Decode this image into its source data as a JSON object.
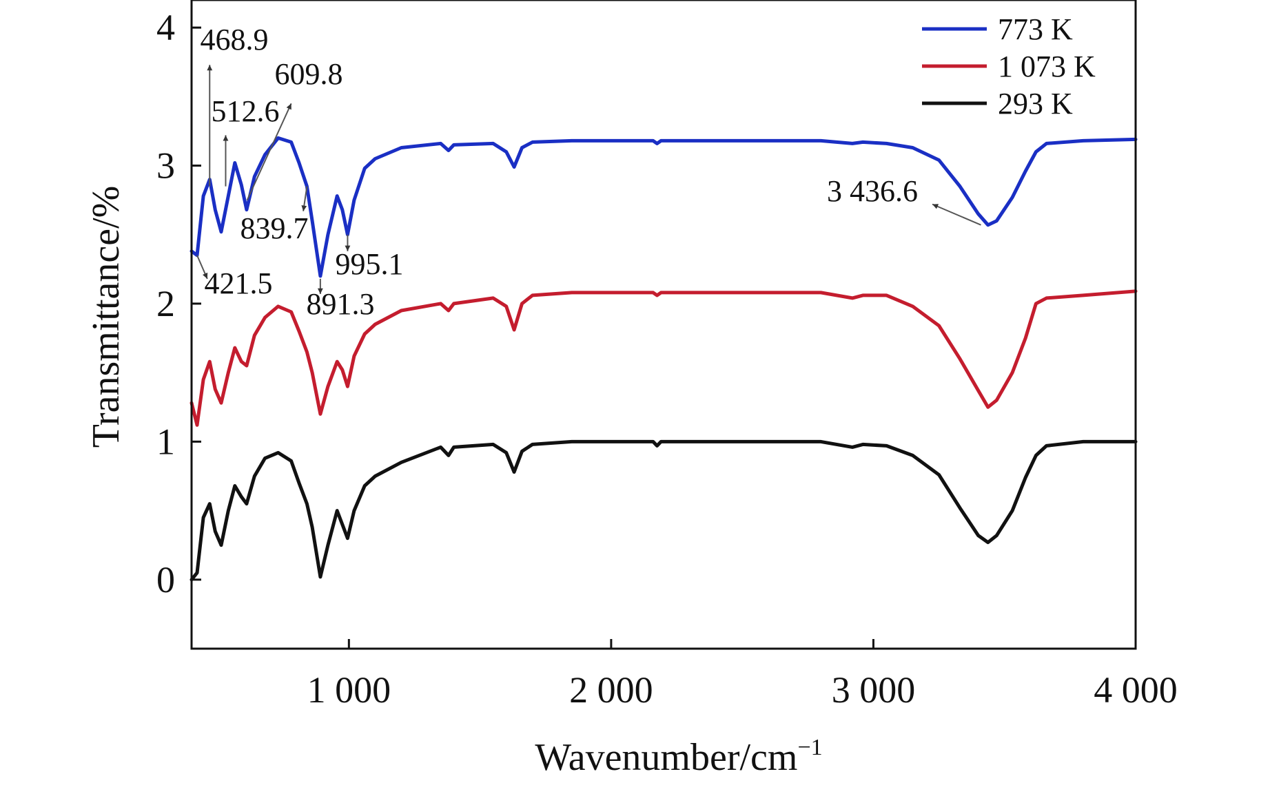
{
  "chart_data": {
    "type": "line",
    "title": "",
    "xlabel": "Wavenumber/cm",
    "xlabel_sup": "−1",
    "ylabel": "Transmittance/%",
    "xlim": [
      400,
      4000
    ],
    "ylim": [
      -0.5,
      4.2
    ],
    "x_ticks": [
      1000,
      2000,
      3000,
      4000
    ],
    "x_tick_labels": [
      "1 000",
      "2 000",
      "3 000",
      "4 000"
    ],
    "y_ticks": [
      0,
      1,
      2,
      3,
      4
    ],
    "y_tick_labels": [
      "0",
      "1",
      "2",
      "3",
      "4"
    ],
    "legend_position": "top-right",
    "colors": {
      "773 K": "#1a2fc4",
      "1 073 K": "#c41d2e",
      "293 K": "#111111",
      "annotation": "#555555"
    },
    "series": [
      {
        "name": "773 K",
        "offset": 2.2,
        "points": [
          [
            400,
            0.18
          ],
          [
            421,
            0.15
          ],
          [
            445,
            0.58
          ],
          [
            469,
            0.7
          ],
          [
            490,
            0.48
          ],
          [
            513,
            0.32
          ],
          [
            540,
            0.58
          ],
          [
            565,
            0.82
          ],
          [
            590,
            0.66
          ],
          [
            610,
            0.48
          ],
          [
            640,
            0.72
          ],
          [
            680,
            0.88
          ],
          [
            730,
            1.0
          ],
          [
            780,
            0.97
          ],
          [
            810,
            0.82
          ],
          [
            840,
            0.65
          ],
          [
            860,
            0.4
          ],
          [
            891,
            0.0
          ],
          [
            920,
            0.3
          ],
          [
            955,
            0.58
          ],
          [
            975,
            0.48
          ],
          [
            995,
            0.3
          ],
          [
            1020,
            0.55
          ],
          [
            1060,
            0.78
          ],
          [
            1100,
            0.85
          ],
          [
            1200,
            0.93
          ],
          [
            1350,
            0.96
          ],
          [
            1380,
            0.91
          ],
          [
            1400,
            0.95
          ],
          [
            1550,
            0.96
          ],
          [
            1600,
            0.9
          ],
          [
            1630,
            0.79
          ],
          [
            1660,
            0.93
          ],
          [
            1700,
            0.97
          ],
          [
            1850,
            0.98
          ],
          [
            2000,
            0.98
          ],
          [
            2160,
            0.98
          ],
          [
            2175,
            0.96
          ],
          [
            2190,
            0.98
          ],
          [
            2500,
            0.98
          ],
          [
            2800,
            0.98
          ],
          [
            2920,
            0.96
          ],
          [
            2960,
            0.97
          ],
          [
            3050,
            0.96
          ],
          [
            3150,
            0.93
          ],
          [
            3250,
            0.84
          ],
          [
            3330,
            0.65
          ],
          [
            3400,
            0.45
          ],
          [
            3437,
            0.37
          ],
          [
            3470,
            0.4
          ],
          [
            3530,
            0.57
          ],
          [
            3580,
            0.76
          ],
          [
            3620,
            0.9
          ],
          [
            3660,
            0.96
          ],
          [
            3800,
            0.98
          ],
          [
            4000,
            0.99
          ]
        ]
      },
      {
        "name": "1 073 K",
        "offset": 1.1,
        "points": [
          [
            400,
            0.18
          ],
          [
            421,
            0.02
          ],
          [
            445,
            0.35
          ],
          [
            469,
            0.48
          ],
          [
            490,
            0.28
          ],
          [
            513,
            0.18
          ],
          [
            540,
            0.4
          ],
          [
            565,
            0.58
          ],
          [
            590,
            0.48
          ],
          [
            610,
            0.45
          ],
          [
            640,
            0.67
          ],
          [
            680,
            0.8
          ],
          [
            730,
            0.88
          ],
          [
            780,
            0.84
          ],
          [
            810,
            0.7
          ],
          [
            840,
            0.55
          ],
          [
            860,
            0.4
          ],
          [
            891,
            0.1
          ],
          [
            920,
            0.3
          ],
          [
            955,
            0.48
          ],
          [
            975,
            0.42
          ],
          [
            995,
            0.3
          ],
          [
            1020,
            0.52
          ],
          [
            1060,
            0.68
          ],
          [
            1100,
            0.75
          ],
          [
            1200,
            0.85
          ],
          [
            1350,
            0.9
          ],
          [
            1380,
            0.85
          ],
          [
            1400,
            0.9
          ],
          [
            1550,
            0.94
          ],
          [
            1600,
            0.88
          ],
          [
            1630,
            0.71
          ],
          [
            1660,
            0.9
          ],
          [
            1700,
            0.96
          ],
          [
            1850,
            0.98
          ],
          [
            2000,
            0.98
          ],
          [
            2160,
            0.98
          ],
          [
            2175,
            0.96
          ],
          [
            2190,
            0.98
          ],
          [
            2500,
            0.98
          ],
          [
            2800,
            0.98
          ],
          [
            2920,
            0.94
          ],
          [
            2960,
            0.96
          ],
          [
            3050,
            0.96
          ],
          [
            3150,
            0.88
          ],
          [
            3250,
            0.74
          ],
          [
            3330,
            0.5
          ],
          [
            3400,
            0.27
          ],
          [
            3437,
            0.15
          ],
          [
            3470,
            0.2
          ],
          [
            3530,
            0.4
          ],
          [
            3580,
            0.65
          ],
          [
            3620,
            0.9
          ],
          [
            3660,
            0.94
          ],
          [
            3800,
            0.96
          ],
          [
            4000,
            0.99
          ]
        ]
      },
      {
        "name": "293 K",
        "offset": 0.0,
        "points": [
          [
            400,
            0.0
          ],
          [
            421,
            0.05
          ],
          [
            445,
            0.45
          ],
          [
            469,
            0.55
          ],
          [
            490,
            0.35
          ],
          [
            513,
            0.25
          ],
          [
            540,
            0.5
          ],
          [
            565,
            0.68
          ],
          [
            590,
            0.6
          ],
          [
            610,
            0.55
          ],
          [
            640,
            0.75
          ],
          [
            680,
            0.88
          ],
          [
            730,
            0.92
          ],
          [
            780,
            0.86
          ],
          [
            810,
            0.7
          ],
          [
            840,
            0.55
          ],
          [
            860,
            0.38
          ],
          [
            891,
            0.02
          ],
          [
            920,
            0.25
          ],
          [
            955,
            0.5
          ],
          [
            975,
            0.4
          ],
          [
            995,
            0.3
          ],
          [
            1020,
            0.5
          ],
          [
            1060,
            0.68
          ],
          [
            1100,
            0.75
          ],
          [
            1200,
            0.85
          ],
          [
            1350,
            0.96
          ],
          [
            1380,
            0.9
          ],
          [
            1400,
            0.96
          ],
          [
            1550,
            0.98
          ],
          [
            1600,
            0.92
          ],
          [
            1630,
            0.78
          ],
          [
            1660,
            0.93
          ],
          [
            1700,
            0.98
          ],
          [
            1850,
            1.0
          ],
          [
            2000,
            1.0
          ],
          [
            2160,
            1.0
          ],
          [
            2175,
            0.97
          ],
          [
            2190,
            1.0
          ],
          [
            2500,
            1.0
          ],
          [
            2800,
            1.0
          ],
          [
            2920,
            0.96
          ],
          [
            2960,
            0.98
          ],
          [
            3050,
            0.97
          ],
          [
            3150,
            0.9
          ],
          [
            3250,
            0.76
          ],
          [
            3330,
            0.52
          ],
          [
            3400,
            0.32
          ],
          [
            3437,
            0.27
          ],
          [
            3470,
            0.32
          ],
          [
            3530,
            0.5
          ],
          [
            3580,
            0.74
          ],
          [
            3620,
            0.9
          ],
          [
            3660,
            0.97
          ],
          [
            3800,
            1.0
          ],
          [
            4000,
            1.0
          ]
        ]
      }
    ],
    "annotations": [
      {
        "label": "468.9",
        "peak": [
          469,
          2.85
        ],
        "arrow_to": [
          469,
          3.73
        ]
      },
      {
        "label": "609.8",
        "peak": [
          612,
          2.75
        ],
        "arrow_to": [
          780,
          3.45
        ]
      },
      {
        "label": "512.6",
        "peak": [
          530,
          2.85
        ],
        "arrow_to": [
          530,
          3.22
        ]
      },
      {
        "label": "839.7",
        "peak": [
          840,
          2.85
        ],
        "arrow_to": [
          826,
          2.67
        ]
      },
      {
        "label": "421.5",
        "peak": [
          421,
          2.35
        ],
        "arrow_to": [
          460,
          2.18
        ]
      },
      {
        "label": "995.1",
        "peak": [
          995,
          2.5
        ],
        "arrow_to": [
          995,
          2.38
        ]
      },
      {
        "label": "891.3",
        "peak": [
          891,
          2.18
        ],
        "arrow_to": [
          891,
          2.07
        ]
      },
      {
        "label": "3 436.6",
        "peak": [
          3410,
          2.57
        ],
        "arrow_to": [
          3225,
          2.72
        ]
      }
    ]
  }
}
